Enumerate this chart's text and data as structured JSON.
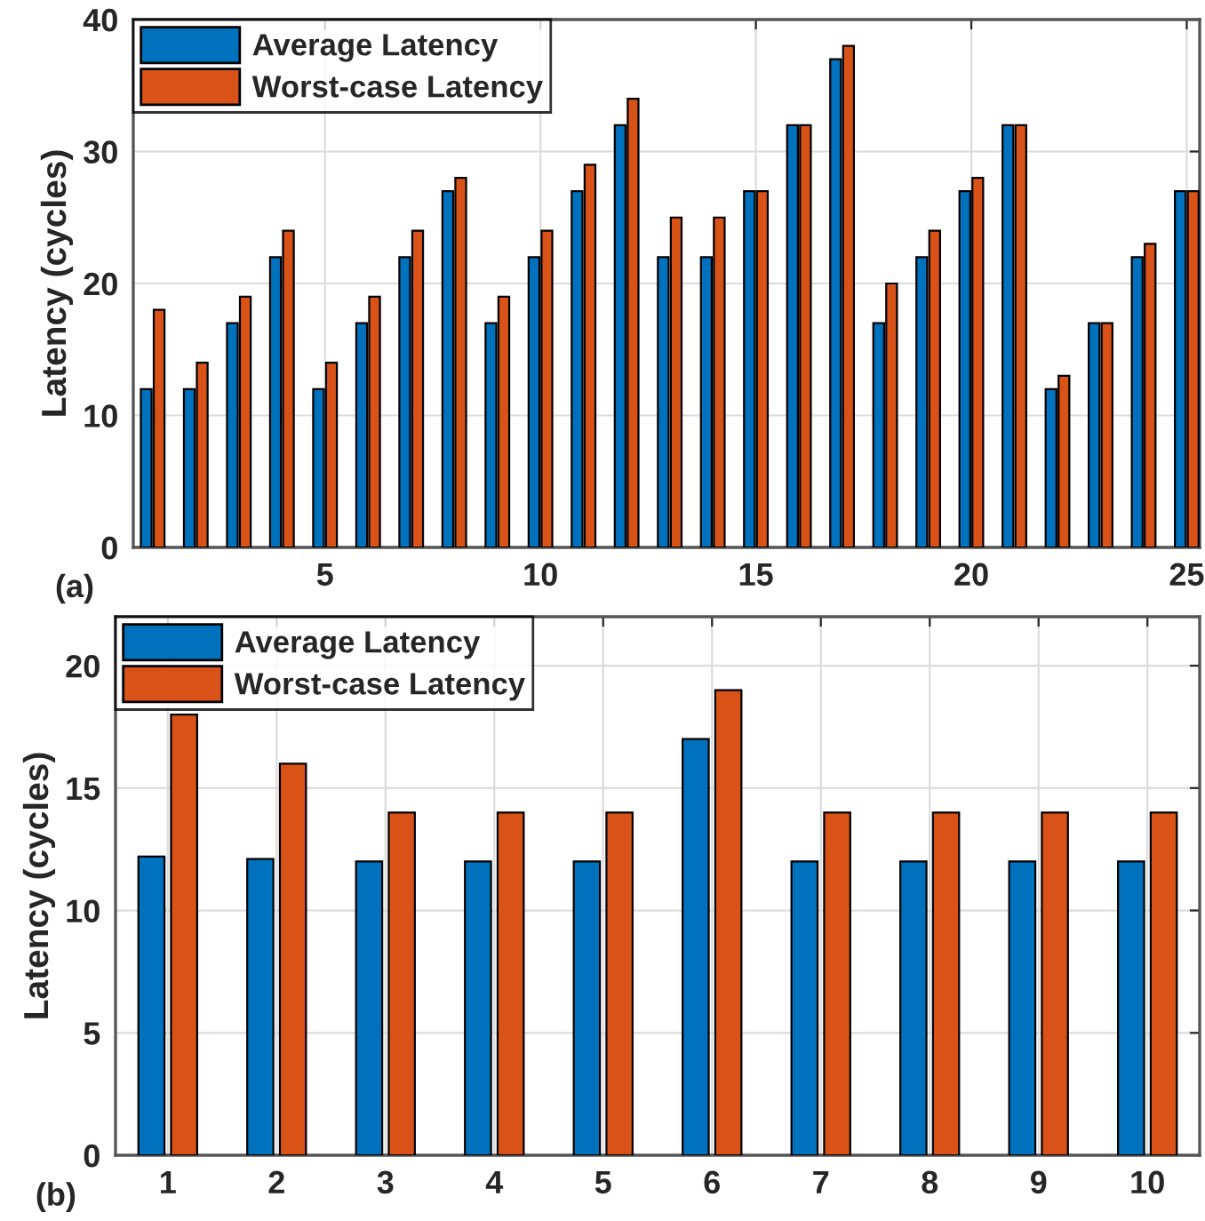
{
  "chart_data": [
    {
      "type": "bar",
      "x": [
        1,
        2,
        3,
        4,
        5,
        6,
        7,
        8,
        9,
        10,
        11,
        12,
        13,
        14,
        15,
        16,
        17,
        18,
        19,
        20,
        21,
        22,
        23,
        24,
        25
      ],
      "xlim": [
        0.55,
        25.3
      ],
      "xticks": [
        5,
        10,
        15,
        20,
        25
      ],
      "ylim": [
        0,
        40
      ],
      "yticks": [
        0,
        10,
        20,
        30,
        40
      ],
      "ylabel": "Latency (cycles)",
      "grid": true,
      "legend": "top left",
      "annotations": [
        "(a)"
      ],
      "series": [
        {
          "name": "Average Latency",
          "color": "#0072bd",
          "values": [
            12,
            12,
            17,
            22,
            12,
            17,
            22,
            27,
            17,
            22,
            27,
            32,
            22,
            22,
            27,
            32,
            37,
            17,
            22,
            27,
            32,
            12,
            17,
            22,
            27
          ]
        },
        {
          "name": "Worst-case Latency",
          "color": "#d95319",
          "values": [
            18,
            14,
            19,
            24,
            14,
            19,
            24,
            28,
            19,
            24,
            29,
            34,
            25,
            25,
            27,
            32,
            38,
            20,
            24,
            28,
            32,
            13,
            17,
            23,
            27
          ]
        }
      ]
    },
    {
      "type": "bar",
      "categories": [
        "1",
        "2",
        "3",
        "4",
        "5",
        "6",
        "7",
        "8",
        "9",
        "10"
      ],
      "ylim": [
        0,
        22
      ],
      "yticks": [
        0,
        5,
        10,
        15,
        20
      ],
      "ylabel": "Latency (cycles)",
      "grid": true,
      "legend": "top left",
      "annotations": [
        "(b)"
      ],
      "series": [
        {
          "name": "Average Latency",
          "color": "#0072bd",
          "values": [
            12.2,
            12.1,
            12,
            12,
            12,
            17,
            12,
            12,
            12,
            12
          ]
        },
        {
          "name": "Worst-case Latency",
          "color": "#d95319",
          "values": [
            18,
            16,
            14,
            14,
            14,
            19,
            14,
            14,
            14,
            14
          ]
        }
      ]
    }
  ]
}
